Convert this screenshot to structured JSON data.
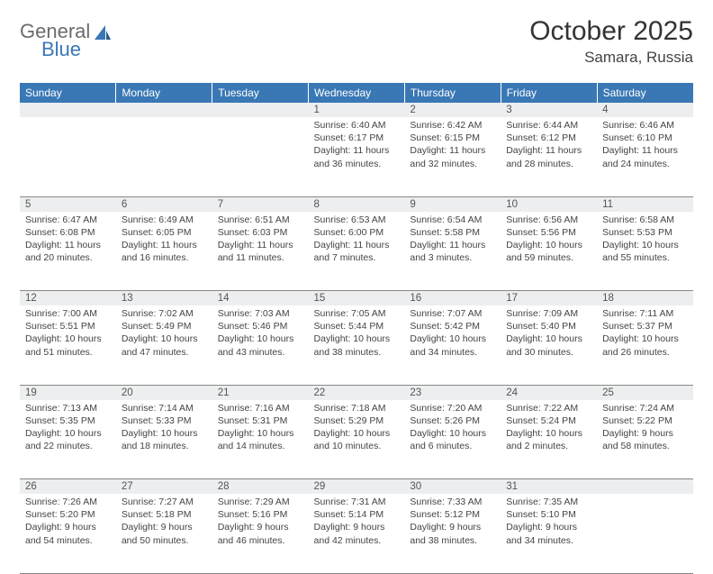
{
  "logo": {
    "text1": "General",
    "text2": "Blue"
  },
  "title": "October 2025",
  "location": "Samara, Russia",
  "colors": {
    "header_bg": "#3a78b5",
    "header_text": "#ffffff",
    "daynum_bg": "#eceeef",
    "border": "#888888",
    "body_text": "#444444"
  },
  "weekdays": [
    "Sunday",
    "Monday",
    "Tuesday",
    "Wednesday",
    "Thursday",
    "Friday",
    "Saturday"
  ],
  "weeks": [
    [
      null,
      null,
      null,
      {
        "n": "1",
        "sr": "6:40 AM",
        "ss": "6:17 PM",
        "dl": "11 hours and 36 minutes."
      },
      {
        "n": "2",
        "sr": "6:42 AM",
        "ss": "6:15 PM",
        "dl": "11 hours and 32 minutes."
      },
      {
        "n": "3",
        "sr": "6:44 AM",
        "ss": "6:12 PM",
        "dl": "11 hours and 28 minutes."
      },
      {
        "n": "4",
        "sr": "6:46 AM",
        "ss": "6:10 PM",
        "dl": "11 hours and 24 minutes."
      }
    ],
    [
      {
        "n": "5",
        "sr": "6:47 AM",
        "ss": "6:08 PM",
        "dl": "11 hours and 20 minutes."
      },
      {
        "n": "6",
        "sr": "6:49 AM",
        "ss": "6:05 PM",
        "dl": "11 hours and 16 minutes."
      },
      {
        "n": "7",
        "sr": "6:51 AM",
        "ss": "6:03 PM",
        "dl": "11 hours and 11 minutes."
      },
      {
        "n": "8",
        "sr": "6:53 AM",
        "ss": "6:00 PM",
        "dl": "11 hours and 7 minutes."
      },
      {
        "n": "9",
        "sr": "6:54 AM",
        "ss": "5:58 PM",
        "dl": "11 hours and 3 minutes."
      },
      {
        "n": "10",
        "sr": "6:56 AM",
        "ss": "5:56 PM",
        "dl": "10 hours and 59 minutes."
      },
      {
        "n": "11",
        "sr": "6:58 AM",
        "ss": "5:53 PM",
        "dl": "10 hours and 55 minutes."
      }
    ],
    [
      {
        "n": "12",
        "sr": "7:00 AM",
        "ss": "5:51 PM",
        "dl": "10 hours and 51 minutes."
      },
      {
        "n": "13",
        "sr": "7:02 AM",
        "ss": "5:49 PM",
        "dl": "10 hours and 47 minutes."
      },
      {
        "n": "14",
        "sr": "7:03 AM",
        "ss": "5:46 PM",
        "dl": "10 hours and 43 minutes."
      },
      {
        "n": "15",
        "sr": "7:05 AM",
        "ss": "5:44 PM",
        "dl": "10 hours and 38 minutes."
      },
      {
        "n": "16",
        "sr": "7:07 AM",
        "ss": "5:42 PM",
        "dl": "10 hours and 34 minutes."
      },
      {
        "n": "17",
        "sr": "7:09 AM",
        "ss": "5:40 PM",
        "dl": "10 hours and 30 minutes."
      },
      {
        "n": "18",
        "sr": "7:11 AM",
        "ss": "5:37 PM",
        "dl": "10 hours and 26 minutes."
      }
    ],
    [
      {
        "n": "19",
        "sr": "7:13 AM",
        "ss": "5:35 PM",
        "dl": "10 hours and 22 minutes."
      },
      {
        "n": "20",
        "sr": "7:14 AM",
        "ss": "5:33 PM",
        "dl": "10 hours and 18 minutes."
      },
      {
        "n": "21",
        "sr": "7:16 AM",
        "ss": "5:31 PM",
        "dl": "10 hours and 14 minutes."
      },
      {
        "n": "22",
        "sr": "7:18 AM",
        "ss": "5:29 PM",
        "dl": "10 hours and 10 minutes."
      },
      {
        "n": "23",
        "sr": "7:20 AM",
        "ss": "5:26 PM",
        "dl": "10 hours and 6 minutes."
      },
      {
        "n": "24",
        "sr": "7:22 AM",
        "ss": "5:24 PM",
        "dl": "10 hours and 2 minutes."
      },
      {
        "n": "25",
        "sr": "7:24 AM",
        "ss": "5:22 PM",
        "dl": "9 hours and 58 minutes."
      }
    ],
    [
      {
        "n": "26",
        "sr": "7:26 AM",
        "ss": "5:20 PM",
        "dl": "9 hours and 54 minutes."
      },
      {
        "n": "27",
        "sr": "7:27 AM",
        "ss": "5:18 PM",
        "dl": "9 hours and 50 minutes."
      },
      {
        "n": "28",
        "sr": "7:29 AM",
        "ss": "5:16 PM",
        "dl": "9 hours and 46 minutes."
      },
      {
        "n": "29",
        "sr": "7:31 AM",
        "ss": "5:14 PM",
        "dl": "9 hours and 42 minutes."
      },
      {
        "n": "30",
        "sr": "7:33 AM",
        "ss": "5:12 PM",
        "dl": "9 hours and 38 minutes."
      },
      {
        "n": "31",
        "sr": "7:35 AM",
        "ss": "5:10 PM",
        "dl": "9 hours and 34 minutes."
      },
      null
    ]
  ],
  "labels": {
    "sunrise": "Sunrise:",
    "sunset": "Sunset:",
    "daylight": "Daylight:"
  }
}
